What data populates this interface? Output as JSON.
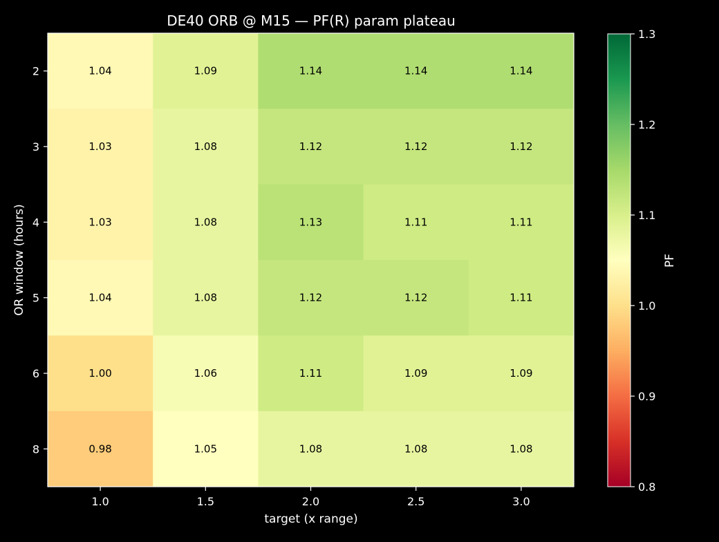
{
  "chart_data": {
    "type": "heatmap",
    "title": "DE40 ORB @ M15 — PF(R) param plateau",
    "xlabel": "target (x range)",
    "ylabel": "OR window (hours)",
    "x_categories": [
      "1.0",
      "1.5",
      "2.0",
      "2.5",
      "3.0"
    ],
    "y_categories": [
      "2",
      "3",
      "4",
      "5",
      "6",
      "8"
    ],
    "values": [
      [
        1.04,
        1.09,
        1.14,
        1.14,
        1.14
      ],
      [
        1.03,
        1.08,
        1.12,
        1.12,
        1.12
      ],
      [
        1.03,
        1.08,
        1.13,
        1.11,
        1.11
      ],
      [
        1.04,
        1.08,
        1.12,
        1.12,
        1.11
      ],
      [
        1.0,
        1.06,
        1.11,
        1.09,
        1.09
      ],
      [
        0.98,
        1.05,
        1.08,
        1.08,
        1.08
      ]
    ],
    "cell_labels": [
      [
        "1.04",
        "1.09",
        "1.14",
        "1.14",
        "1.14"
      ],
      [
        "1.03",
        "1.08",
        "1.12",
        "1.12",
        "1.12"
      ],
      [
        "1.03",
        "1.08",
        "1.13",
        "1.11",
        "1.11"
      ],
      [
        "1.04",
        "1.08",
        "1.12",
        "1.12",
        "1.11"
      ],
      [
        "1.00",
        "1.06",
        "1.11",
        "1.09",
        "1.09"
      ],
      [
        "0.98",
        "1.05",
        "1.08",
        "1.08",
        "1.08"
      ]
    ],
    "colorbar": {
      "label": "PF",
      "vmin": 0.8,
      "vmax": 1.3,
      "ticks": [
        "0.8",
        "0.9",
        "1.0",
        "1.1",
        "1.2",
        "1.3"
      ],
      "colormap": "RdYlGn"
    },
    "background": "#000000",
    "foreground": "#ffffff",
    "grid": false
  }
}
